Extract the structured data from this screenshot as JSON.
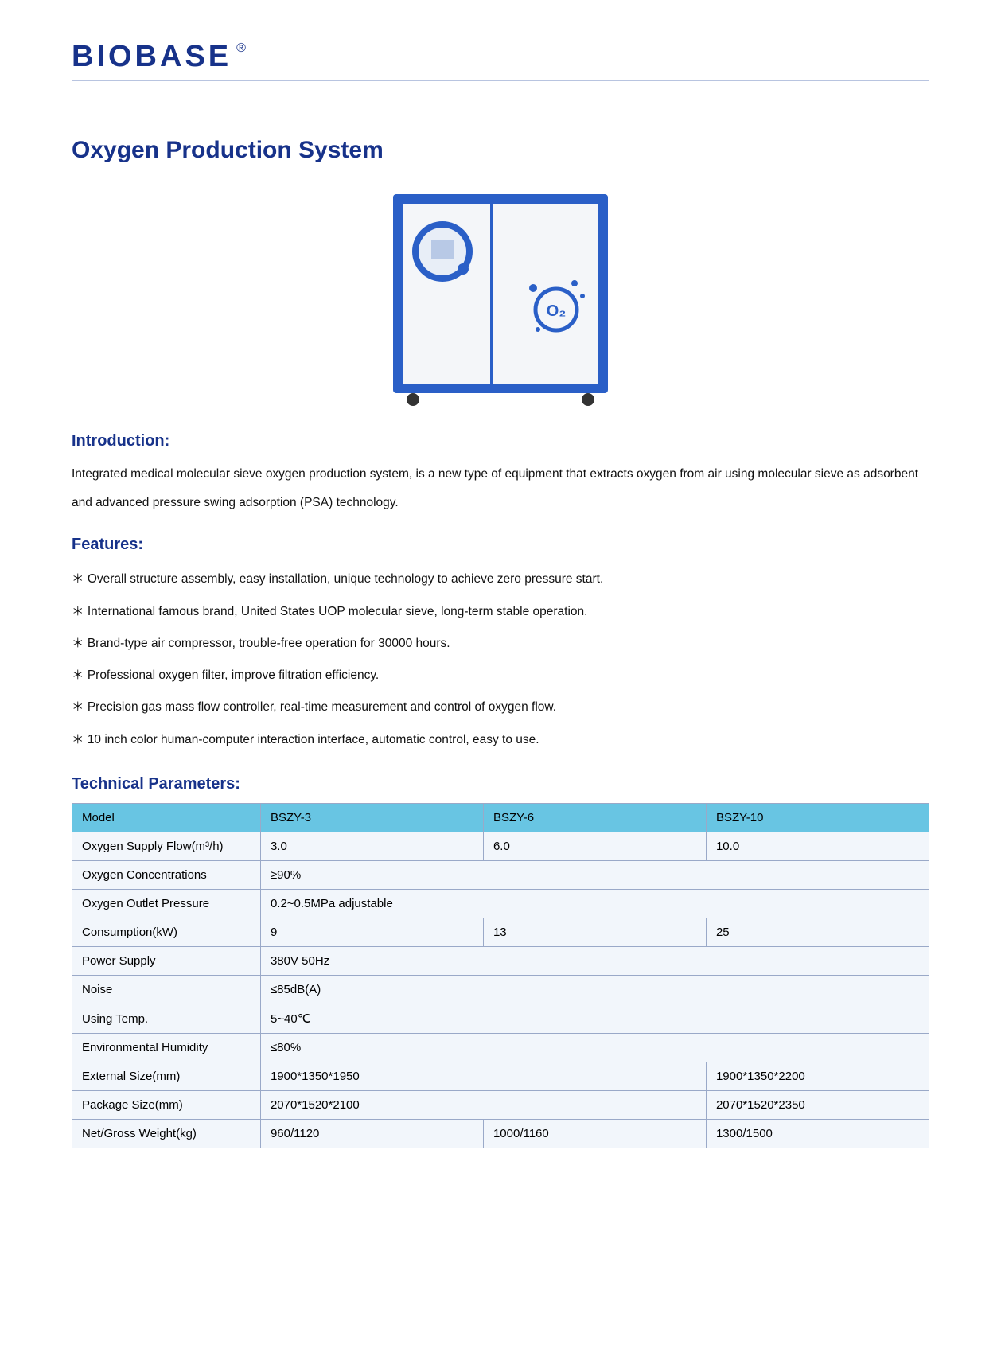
{
  "brand": {
    "name": "BIOBASE",
    "mark": "®"
  },
  "title": "Oxygen Production System",
  "intro": {
    "heading": "Introduction:",
    "text": "Integrated medical molecular sieve oxygen production system, is a new type of equipment that extracts oxygen from air using molecular sieve as adsorbent and advanced pressure swing adsorption (PSA) technology."
  },
  "features": {
    "heading": "Features:",
    "items": [
      "Overall structure assembly, easy installation, unique technology to achieve zero pressure start.",
      "International famous brand, United States UOP molecular sieve, long-term stable operation.",
      "Brand-type air compressor, trouble-free operation for 30000 hours.",
      "Professional oxygen filter, improve filtration efficiency.",
      "Precision gas mass flow controller, real-time measurement and control of oxygen flow.",
      "10 inch color human-computer interaction interface, automatic control, easy to use."
    ]
  },
  "tech": {
    "heading": "Technical Parameters:",
    "header": [
      "Model",
      "BSZY-3",
      "BSZY-6",
      "BSZY-10"
    ],
    "rows": [
      {
        "label": "Oxygen Supply Flow(m³/h)",
        "cells": [
          "3.0",
          "6.0",
          "10.0"
        ],
        "spans": [
          1,
          1,
          1
        ]
      },
      {
        "label": "Oxygen Concentrations",
        "cells": [
          "≥90%"
        ],
        "spans": [
          3
        ]
      },
      {
        "label": "Oxygen Outlet Pressure",
        "cells": [
          "0.2~0.5MPa adjustable"
        ],
        "spans": [
          3
        ]
      },
      {
        "label": "Consumption(kW)",
        "cells": [
          "9",
          "13",
          "25"
        ],
        "spans": [
          1,
          1,
          1
        ]
      },
      {
        "label": "Power Supply",
        "cells": [
          "380V 50Hz"
        ],
        "spans": [
          3
        ]
      },
      {
        "label": "Noise",
        "cells": [
          "≤85dB(A)"
        ],
        "spans": [
          3
        ]
      },
      {
        "label": "Using Temp.",
        "cells": [
          "5~40℃"
        ],
        "spans": [
          3
        ]
      },
      {
        "label": "Environmental Humidity",
        "cells": [
          "≤80%"
        ],
        "spans": [
          3
        ]
      },
      {
        "label": "External Size(mm)",
        "cells": [
          "1900*1350*1950",
          "1900*1350*2200"
        ],
        "spans": [
          2,
          1
        ]
      },
      {
        "label": "Package Size(mm)",
        "cells": [
          "2070*1520*2100",
          "2070*1520*2350"
        ],
        "spans": [
          2,
          1
        ]
      },
      {
        "label": "Net/Gross Weight(kg)",
        "cells": [
          "960/1120",
          "1000/1160",
          "1300/1500"
        ],
        "spans": [
          1,
          1,
          1
        ]
      }
    ]
  },
  "style": {
    "brand_color": "#17328a",
    "table_header_bg": "#68c5e3",
    "table_row_bg": "#f2f6fb",
    "table_border": "#9aa9c8",
    "hr_color": "#b8c4e0",
    "text_color": "#111111",
    "product_frame_color": "#2a5fc7",
    "product_panel_color": "#f4f6f9",
    "o2_ring_color": "#2a5fc7"
  }
}
